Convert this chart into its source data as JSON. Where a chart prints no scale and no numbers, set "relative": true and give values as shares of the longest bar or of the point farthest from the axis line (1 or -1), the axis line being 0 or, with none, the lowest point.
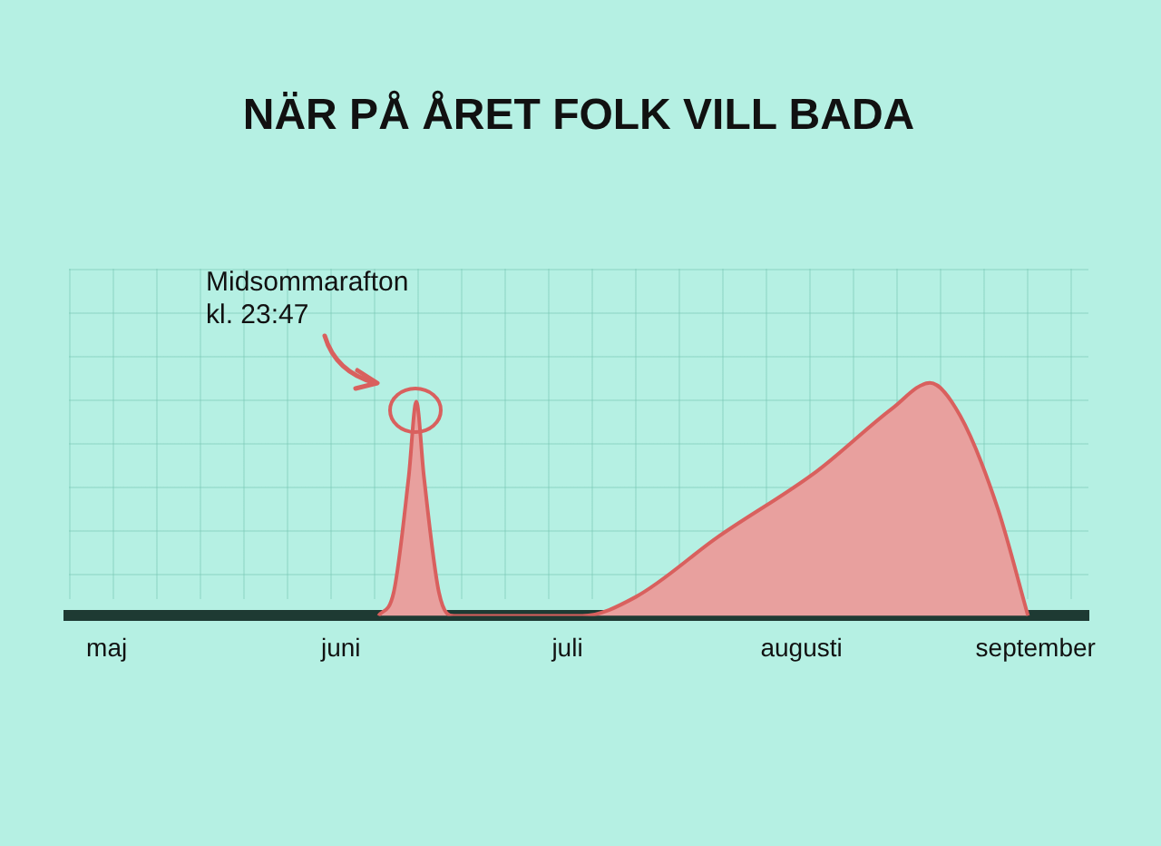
{
  "chart_data": {
    "type": "area",
    "title": "NÄR PÅ ÅRET FOLK VILL BADA",
    "relative": true,
    "x": [
      "--06-06",
      "--06-08",
      "--06-10",
      "--06-11",
      "--06-12",
      "--06-14",
      "--06-16",
      "--07-03",
      "--07-10",
      "--07-21",
      "--08-03",
      "--08-13",
      "--08-18",
      "--08-22",
      "--08-27",
      "--08-31"
    ],
    "series": [
      {
        "color": "#d9605e",
        "values": [
          0,
          0.1,
          0.6,
          0.92,
          0.6,
          0.1,
          0,
          0,
          0.08,
          0.34,
          0.62,
          0.89,
          1,
          0.86,
          0.46,
          0
        ]
      }
    ],
    "xlim": [
      "--04-26",
      "--09-08"
    ],
    "xticks": [
      {
        "value": "--05-01",
        "label": "maj"
      },
      {
        "value": "--06-01",
        "label": "juni"
      },
      {
        "value": "--07-01",
        "label": "juli"
      },
      {
        "value": "--08-01",
        "label": "augusti"
      },
      {
        "value": "--09-01",
        "label": "september"
      }
    ],
    "annotations": [
      {
        "text": "Midsommarafton\nkl. 23:47",
        "x": "--06-11",
        "y": 0.92
      }
    ],
    "legend": false
  }
}
